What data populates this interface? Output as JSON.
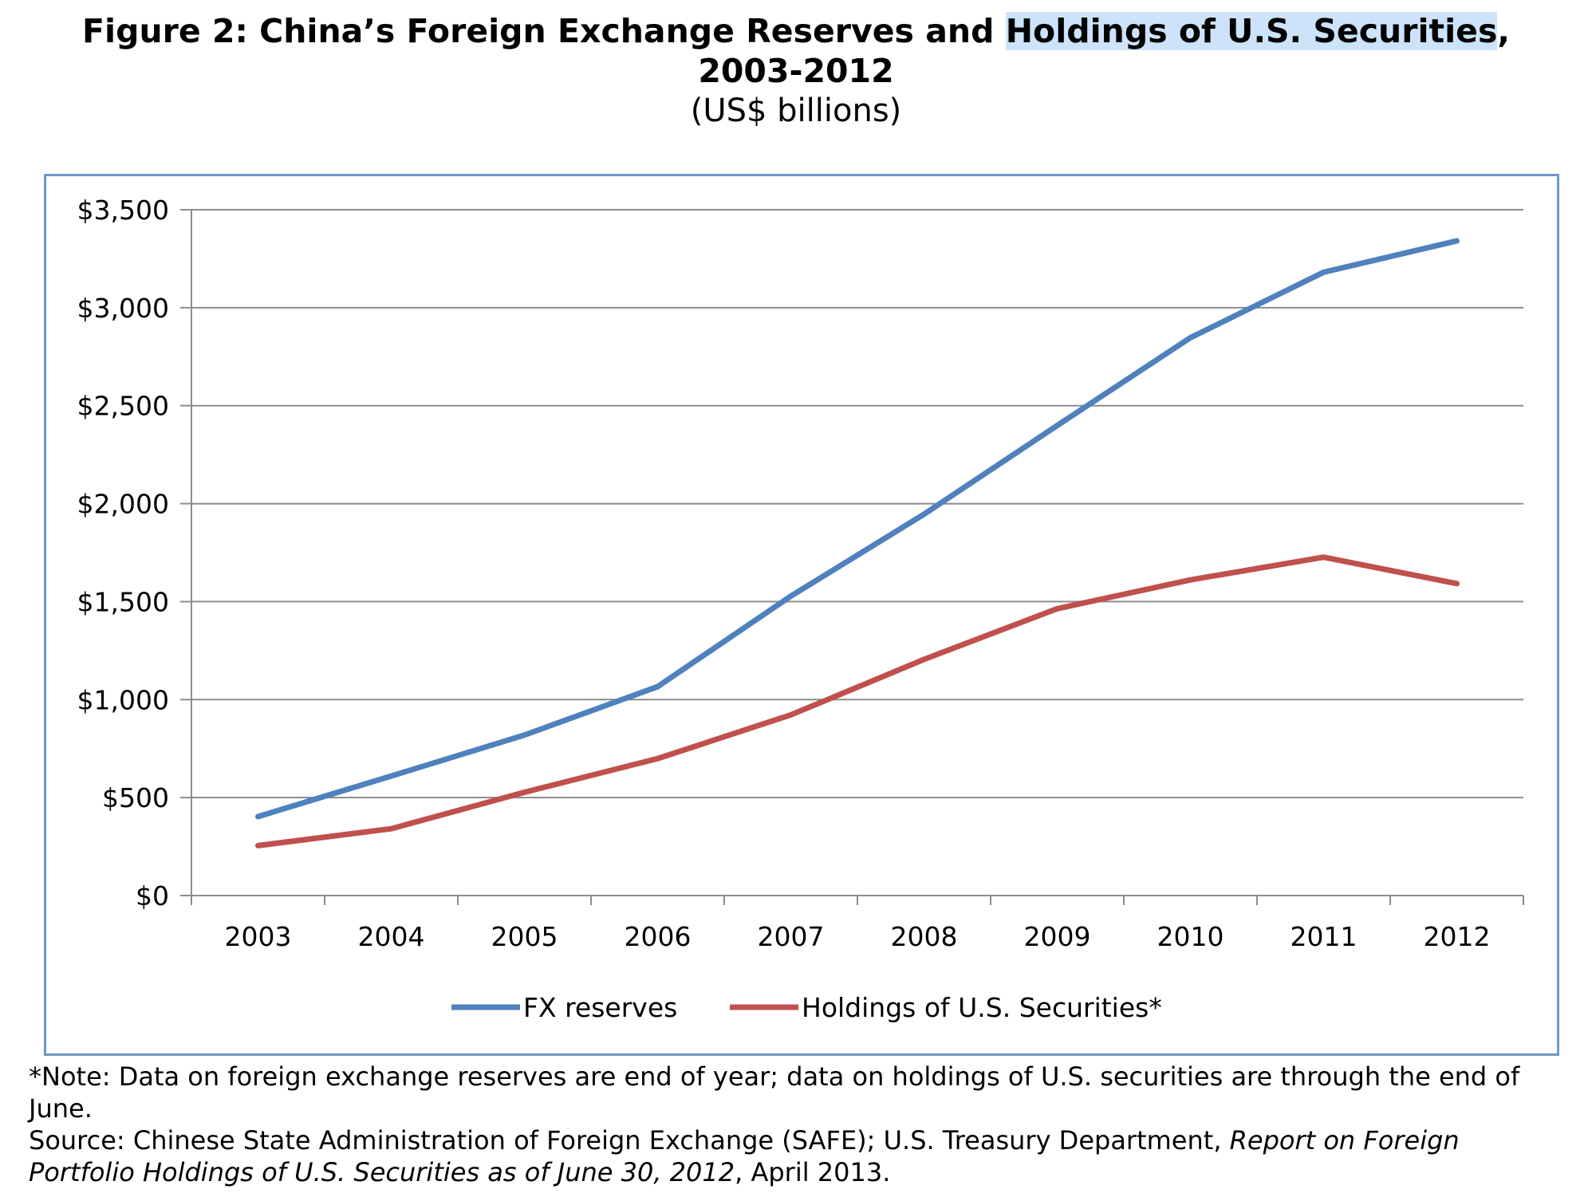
{
  "header": {
    "title_part1": "Figure 2: China’s Foreign Exchange Reserves and ",
    "title_highlight": "Holdings of U.S. Securities",
    "title_part2": ",",
    "title_line2": "2003-2012",
    "units": "(US$ billions)"
  },
  "colors": {
    "fx_reserves": "#4f81bd",
    "us_securities": "#c0504d",
    "frame": "#6c98c6",
    "grid": "#8c8c8c",
    "highlight": "#cde3fa"
  },
  "chart_data": {
    "type": "line",
    "categories": [
      "2003",
      "2004",
      "2005",
      "2006",
      "2007",
      "2008",
      "2009",
      "2010",
      "2011",
      "2012"
    ],
    "y_ticks": [
      "$0",
      "$500",
      "$1,000",
      "$1,500",
      "$2,000",
      "$2,500",
      "$3,000",
      "$3,500"
    ],
    "ylim": [
      0,
      3500
    ],
    "y_step": 500,
    "grid": true,
    "legend_position": "bottom",
    "series": [
      {
        "name": "FX reserves",
        "values": [
          403,
          610,
          819,
          1066,
          1528,
          1946,
          2399,
          2847,
          3181,
          3341
        ]
      },
      {
        "name": "Holdings of U.S. Securities*",
        "values": [
          255,
          341,
          527,
          699,
          922,
          1205,
          1464,
          1611,
          1727,
          1592
        ]
      }
    ]
  },
  "footnote": {
    "note": "*Note: Data on foreign exchange reserves are end of year; data on holdings of U.S. securities are through the end of June.",
    "source_prefix": "Source: Chinese State Administration of Foreign Exchange (SAFE); U.S. Treasury Department, ",
    "source_italic": "Report on Foreign Portfolio Holdings of U.S. Securities as of June 30, 2012",
    "source_suffix": ", April 2013."
  }
}
